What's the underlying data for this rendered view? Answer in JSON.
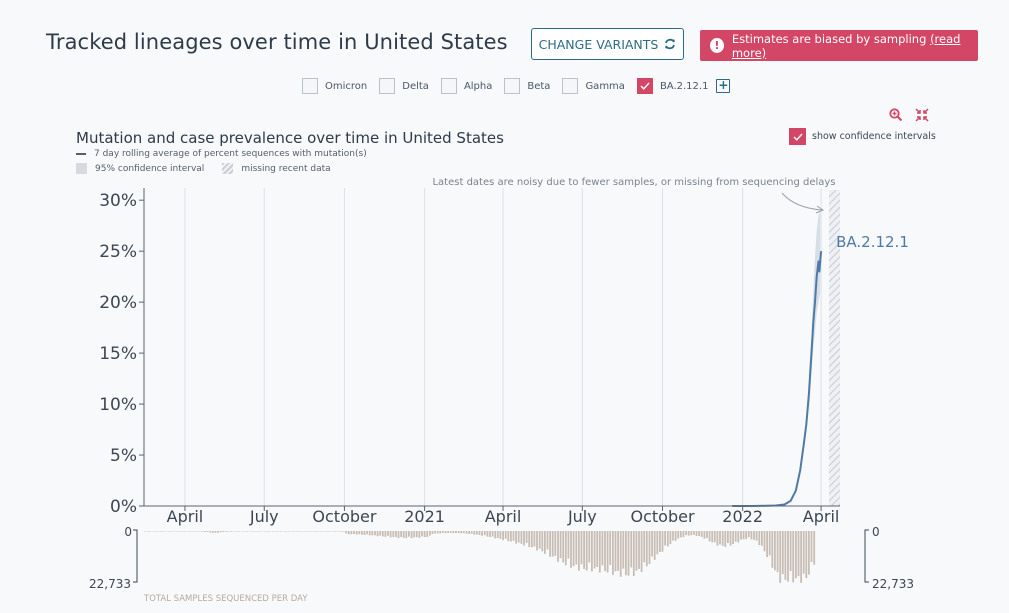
{
  "page_title": "Tracked lineages over time in United States",
  "change_variants_label": "CHANGE VARIANTS",
  "warning": {
    "text": "Estimates are biased by sampling",
    "link": "(read more)"
  },
  "variants": [
    {
      "name": "Omicron",
      "checked": false
    },
    {
      "name": "Delta",
      "checked": false
    },
    {
      "name": "Alpha",
      "checked": false
    },
    {
      "name": "Beta",
      "checked": false
    },
    {
      "name": "Gamma",
      "checked": false
    },
    {
      "name": "BA.2.12.1",
      "checked": true
    }
  ],
  "confidence_toggle_label": "show confidence intervals",
  "legend": {
    "line": "7 day rolling average of percent sequences with mutation(s)",
    "ci": "95% confidence interval",
    "missing": "missing recent data"
  },
  "colors": {
    "accent": "#d34665",
    "series": "#4f7aa6",
    "brand": "#2c6b85",
    "bars": "#c8bdb5"
  },
  "chart_data": {
    "type": "line",
    "title": "Mutation and case prevalence over time in United States",
    "annotation": "Latest dates are noisy due to fewer samples, or missing from sequencing delays",
    "series_label": "BA.2.12.1",
    "y_ticks": [
      "0%",
      "5%",
      "10%",
      "15%",
      "20%",
      "25%",
      "30%"
    ],
    "ylim": [
      0,
      31
    ],
    "x_range_days": [
      0,
      770
    ],
    "x_ticks": [
      {
        "label": "April",
        "day": 47
      },
      {
        "label": "July",
        "day": 138
      },
      {
        "label": "October",
        "day": 230
      },
      {
        "label": "2021",
        "day": 322
      },
      {
        "label": "April",
        "day": 412
      },
      {
        "label": "July",
        "day": 503
      },
      {
        "label": "October",
        "day": 595
      },
      {
        "label": "2022",
        "day": 687
      },
      {
        "label": "April",
        "day": 777
      }
    ],
    "series": [
      {
        "name": "BA.2.12.1",
        "points": [
          [
            675,
            0
          ],
          [
            700,
            0
          ],
          [
            725,
            0.05
          ],
          [
            735,
            0.15
          ],
          [
            742,
            0.5
          ],
          [
            748,
            1.5
          ],
          [
            753,
            3.5
          ],
          [
            757,
            6
          ],
          [
            760,
            8
          ],
          [
            763,
            11
          ],
          [
            766,
            15
          ],
          [
            768,
            18
          ],
          [
            770,
            20
          ],
          [
            772,
            22.5
          ],
          [
            774,
            24
          ],
          [
            775,
            23
          ],
          [
            776,
            24
          ],
          [
            777,
            25
          ]
        ],
        "ci_upper": [
          [
            763,
            13
          ],
          [
            766,
            17
          ],
          [
            768,
            21
          ],
          [
            770,
            24.5
          ],
          [
            772,
            27
          ],
          [
            774,
            28.5
          ],
          [
            776,
            29
          ]
        ],
        "ci_lower": [
          [
            763,
            9
          ],
          [
            766,
            13
          ],
          [
            768,
            15.5
          ],
          [
            770,
            17
          ],
          [
            772,
            19
          ],
          [
            774,
            20
          ],
          [
            776,
            21
          ]
        ]
      }
    ],
    "samples_axis": {
      "title": "TOTAL SAMPLES SEQUENCED PER DAY",
      "max_label": "22,733",
      "zero_label": "0",
      "max": 22733
    }
  }
}
